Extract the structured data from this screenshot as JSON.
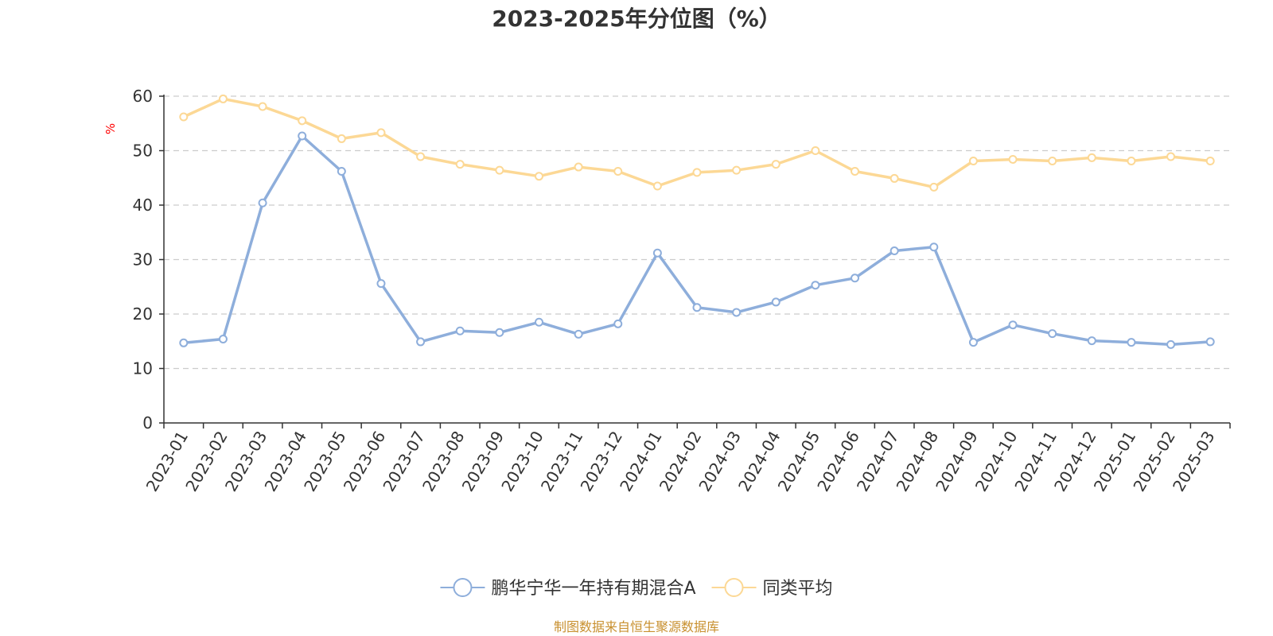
{
  "chart_data": {
    "type": "line",
    "title": "2023-2025年分位图（%）",
    "ylabel": "%",
    "ylim": [
      0,
      60
    ],
    "yticks": [
      0,
      10,
      20,
      30,
      40,
      50,
      60
    ],
    "grid": true,
    "legend_position": "bottom-center",
    "categories": [
      "2023-01",
      "2023-02",
      "2023-03",
      "2023-04",
      "2023-05",
      "2023-06",
      "2023-07",
      "2023-08",
      "2023-09",
      "2023-10",
      "2023-11",
      "2023-12",
      "2024-01",
      "2024-02",
      "2024-03",
      "2024-04",
      "2024-05",
      "2024-06",
      "2024-07",
      "2024-08",
      "2024-09",
      "2024-10",
      "2024-11",
      "2024-12",
      "2025-01",
      "2025-02",
      "2025-03"
    ],
    "series": [
      {
        "name": "鹏华宁华一年持有期混合A",
        "color": "#8eaedb",
        "values": [
          14.7,
          15.4,
          40.4,
          52.7,
          46.2,
          25.6,
          14.9,
          16.9,
          16.6,
          18.5,
          16.3,
          18.2,
          31.2,
          21.2,
          20.3,
          22.2,
          25.3,
          26.6,
          31.6,
          32.3,
          14.8,
          18.0,
          16.4,
          15.1,
          14.8,
          14.4,
          14.9
        ]
      },
      {
        "name": "同类平均",
        "color": "#fcd895",
        "values": [
          56.2,
          59.5,
          58.1,
          55.5,
          52.2,
          53.3,
          48.9,
          47.5,
          46.4,
          45.3,
          47.0,
          46.2,
          43.5,
          46.0,
          46.4,
          47.5,
          50.0,
          46.2,
          44.9,
          43.3,
          48.1,
          48.4,
          48.1,
          48.7,
          48.1,
          48.9,
          48.1
        ]
      }
    ]
  },
  "source_note": "制图数据来自恒生聚源数据库",
  "axis_color": "#333333",
  "grid_color": "#cccccc",
  "unit_color": "#ff0000",
  "source_color": "#c8902f"
}
